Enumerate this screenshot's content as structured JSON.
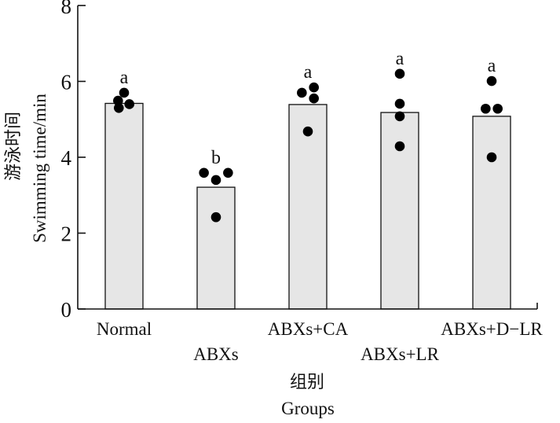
{
  "chart_data": {
    "type": "bar",
    "title": "",
    "xlabel": "组别\nGroups",
    "xlabel_lines": [
      "组别",
      "Groups"
    ],
    "ylabel": "游泳时间 Swimming time/min",
    "ylabel_lines": [
      "游泳时间",
      "Swimming time/min"
    ],
    "ylim": [
      0,
      8
    ],
    "yticks": [
      0,
      2,
      4,
      6,
      8
    ],
    "ytick_labels": [
      "0",
      "2",
      "4",
      "6",
      "8"
    ],
    "grid": false,
    "legend": null,
    "categories": [
      "Normal",
      "ABXs",
      "ABXs+CA",
      "ABXs+LR",
      "ABXs+D−LR"
    ],
    "values": [
      5.42,
      3.21,
      5.39,
      5.18,
      5.08
    ],
    "significance": [
      "a",
      "b",
      "a",
      "a",
      "a"
    ],
    "points": [
      [
        5.7,
        5.49,
        5.3,
        5.4
      ],
      [
        3.59,
        3.4,
        3.59,
        2.42
      ],
      [
        5.7,
        5.84,
        5.55,
        4.68
      ],
      [
        6.2,
        5.41,
        5.08,
        4.29
      ],
      [
        6.01,
        5.28,
        5.28,
        4.0
      ]
    ],
    "point_offsets": [
      [
        0.0,
        -0.16,
        -0.14,
        0.14
      ],
      [
        -0.32,
        0.0,
        0.32,
        0.0
      ],
      [
        -0.16,
        0.16,
        0.16,
        0.0
      ],
      [
        0.0,
        0.0,
        0.0,
        0.0
      ],
      [
        0.0,
        -0.16,
        0.16,
        0.0
      ]
    ],
    "colors": {
      "bar_fill": "#e6e6e6",
      "bar_stroke": "#111111",
      "point": "#000000",
      "axis": "#111111"
    }
  }
}
